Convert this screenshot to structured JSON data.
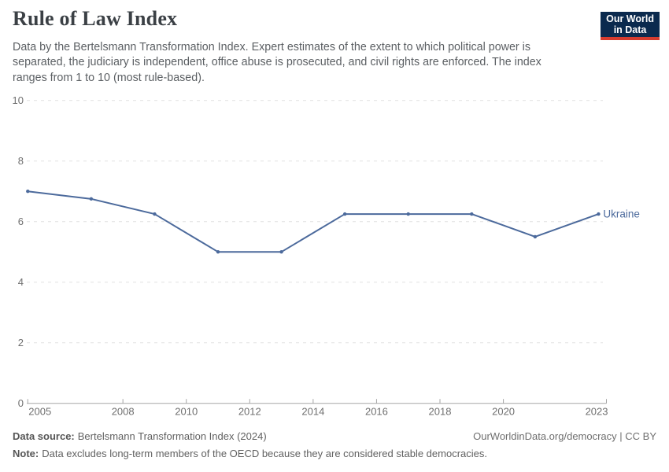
{
  "header": {
    "title": "Rule of Law Index",
    "subtitle": "Data by the Bertelsmann Transformation Index. Expert estimates of the extent to which political power is separated, the judiciary is independent, office abuse is prosecuted, and civil rights are enforced. The index ranges from 1 to 10 (most rule-based).",
    "logo": {
      "line1": "Our World",
      "line2": "in Data",
      "bg_color": "#0B2A4E",
      "accent_color": "#D63C2F"
    }
  },
  "chart_data": {
    "type": "line",
    "title": "Rule of Law Index",
    "x": [
      2005,
      2007,
      2009,
      2011,
      2013,
      2015,
      2017,
      2019,
      2021,
      2023
    ],
    "series": [
      {
        "name": "Ukraine",
        "color": "#4C6A9C",
        "values": [
          7.0,
          6.75,
          6.25,
          5.0,
          5.0,
          6.25,
          6.25,
          6.25,
          5.5,
          6.25
        ]
      }
    ],
    "xlabel": "",
    "ylabel": "",
    "xlim": [
      2005,
      2023.25
    ],
    "ylim": [
      0,
      10
    ],
    "x_ticks": [
      2005,
      2008,
      2010,
      2012,
      2014,
      2016,
      2018,
      2020,
      2023
    ],
    "y_ticks": [
      0,
      2,
      4,
      6,
      8,
      10
    ],
    "grid": "horizontal-dashed",
    "legend_position": "end-of-line-label"
  },
  "footer": {
    "source_label": "Data source:",
    "source_value": "Bertelsmann Transformation Index (2024)",
    "link_text": "OurWorldinData.org/democracy | CC BY",
    "note_label": "Note:",
    "note_value": "Data excludes long-term members of the OECD because they are considered stable democracies."
  }
}
